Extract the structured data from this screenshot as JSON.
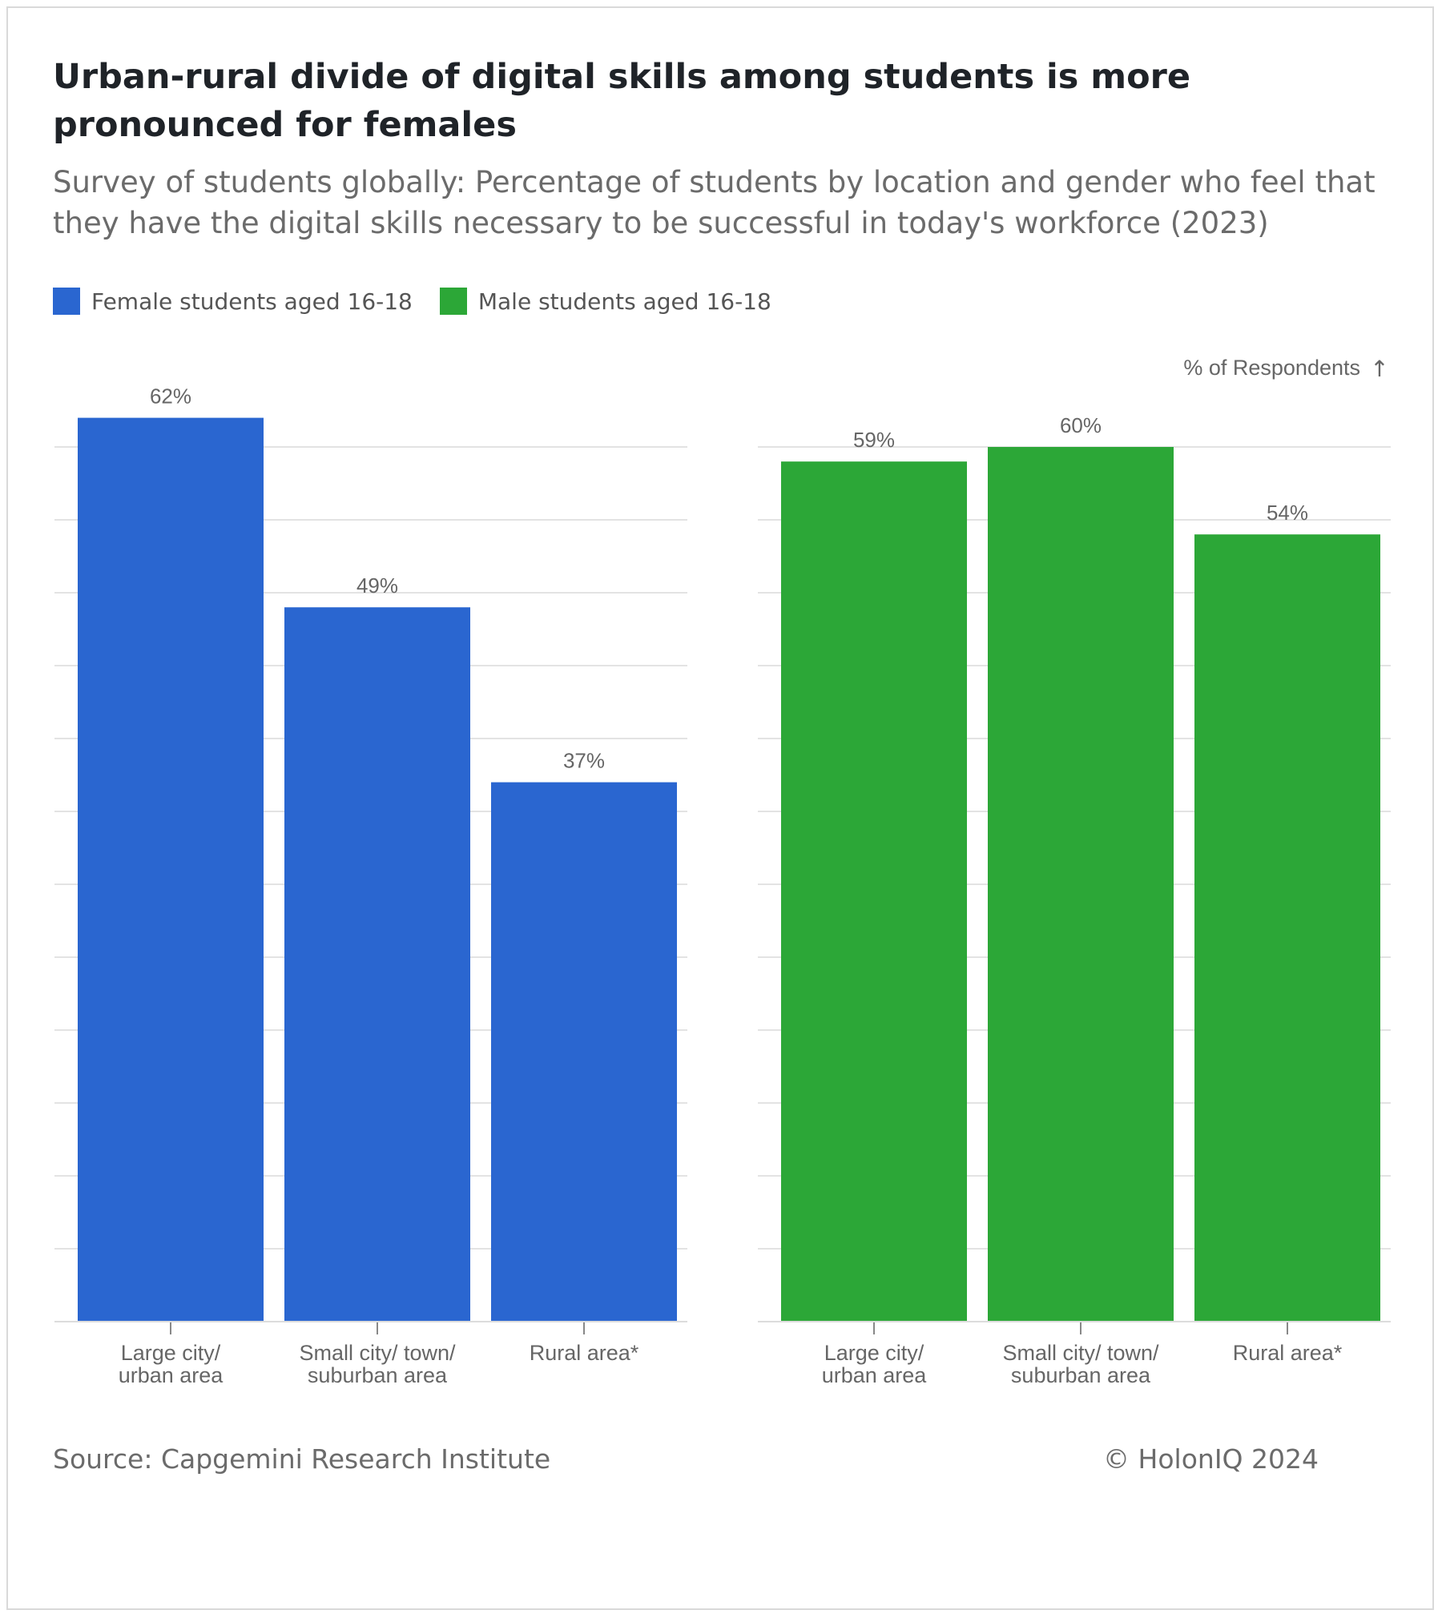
{
  "header": {
    "title": "Urban-rural divide of digital skills among students is more pronounced for females",
    "subtitle": "Survey of students globally: Percentage of students by location and gender who feel that they have the digital skills necessary to be successful in today's workforce (2023)"
  },
  "legend": {
    "items": [
      {
        "label": "Female students aged 16-18",
        "color": "#2a66d0"
      },
      {
        "label": "Male students aged 16-18",
        "color": "#2ca737"
      }
    ]
  },
  "axis": {
    "label": "% of Respondents",
    "arrow": "↑"
  },
  "chart_data": {
    "type": "bar",
    "title": "Urban-rural divide of digital skills among students is more pronounced for females",
    "ylabel": "% of Respondents",
    "ylim": [
      0,
      60
    ],
    "categories": [
      "Large city/ urban area",
      "Small city/ town/ suburban area",
      "Rural area*"
    ],
    "panels": [
      {
        "name": "Female students aged 16-18",
        "color": "#2a66d0",
        "values": [
          62,
          49,
          37
        ],
        "labels": [
          "62%",
          "49%",
          "37%"
        ]
      },
      {
        "name": "Male students aged 16-18",
        "color": "#2ca737",
        "values": [
          59,
          60,
          54
        ],
        "labels": [
          "59%",
          "60%",
          "54%"
        ]
      }
    ],
    "category_lines": [
      [
        "Large city/",
        "urban area"
      ],
      [
        "Small city/ town/",
        "suburban area"
      ],
      [
        "Rural area*"
      ]
    ]
  },
  "footer": {
    "source": "Source: Capgemini Research Institute",
    "copyright": "© HolonIQ 2024"
  }
}
